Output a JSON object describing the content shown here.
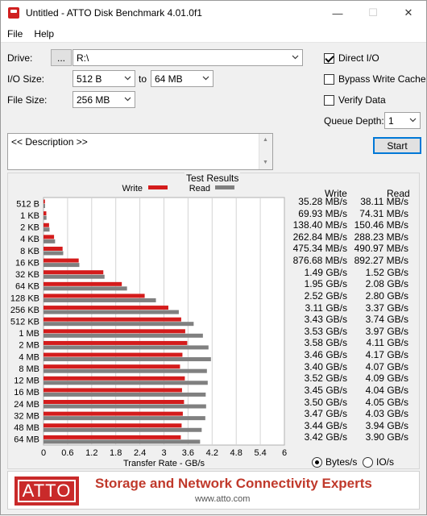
{
  "window": {
    "title": "Untitled - ATTO Disk Benchmark 4.01.0f1",
    "minimize_glyph": "—",
    "maximize_glyph": "☐",
    "close_glyph": "✕"
  },
  "menu": [
    "File",
    "Help"
  ],
  "controls": {
    "drive_label": "Drive:",
    "browse_label": "...",
    "drive_value": "R:\\",
    "io_size_label": "I/O Size:",
    "io_from": "512 B",
    "io_to_label": "to",
    "io_to": "64 MB",
    "file_size_label": "File Size:",
    "file_size": "256 MB",
    "direct_io_label": "Direct I/O",
    "direct_io_checked": true,
    "bypass_label": "Bypass Write Cache",
    "bypass_checked": false,
    "verify_label": "Verify Data",
    "verify_checked": false,
    "queue_depth_label": "Queue Depth:",
    "queue_depth": "1",
    "start_label": "Start"
  },
  "description": "<< Description >>",
  "results": {
    "title": "Test Results",
    "legend_write": "Write",
    "legend_read": "Read",
    "col_write": "Write",
    "col_read": "Read",
    "write_display": [
      "35.28 MB/s",
      "69.93 MB/s",
      "138.40 MB/s",
      "262.84 MB/s",
      "475.34 MB/s",
      "876.68 MB/s",
      "1.49 GB/s",
      "1.95 GB/s",
      "2.52 GB/s",
      "3.11 GB/s",
      "3.43 GB/s",
      "3.53 GB/s",
      "3.58 GB/s",
      "3.46 GB/s",
      "3.40 GB/s",
      "3.52 GB/s",
      "3.45 GB/s",
      "3.50 GB/s",
      "3.47 GB/s",
      "3.44 GB/s",
      "3.42 GB/s"
    ],
    "read_display": [
      "38.11 MB/s",
      "74.31 MB/s",
      "150.46 MB/s",
      "288.23 MB/s",
      "490.97 MB/s",
      "892.27 MB/s",
      "1.52 GB/s",
      "2.08 GB/s",
      "2.80 GB/s",
      "3.37 GB/s",
      "3.74 GB/s",
      "3.97 GB/s",
      "4.11 GB/s",
      "4.17 GB/s",
      "4.07 GB/s",
      "4.09 GB/s",
      "4.04 GB/s",
      "4.05 GB/s",
      "4.03 GB/s",
      "3.94 GB/s",
      "3.90 GB/s"
    ],
    "units_bytes_label": "Bytes/s",
    "units_io_label": "IO/s",
    "units_selected": "bytes"
  },
  "chart_data": {
    "type": "bar",
    "orientation": "horizontal",
    "categories": [
      "512 B",
      "1 KB",
      "2 KB",
      "4 KB",
      "8 KB",
      "16 KB",
      "32 KB",
      "64 KB",
      "128 KB",
      "256 KB",
      "512 KB",
      "1 MB",
      "2 MB",
      "4 MB",
      "8 MB",
      "12 MB",
      "16 MB",
      "24 MB",
      "32 MB",
      "48 MB",
      "64 MB"
    ],
    "series": [
      {
        "name": "Write",
        "color": "#d41c1c",
        "values": [
          0.03528,
          0.06993,
          0.1384,
          0.26284,
          0.47534,
          0.87668,
          1.49,
          1.95,
          2.52,
          3.11,
          3.43,
          3.53,
          3.58,
          3.46,
          3.4,
          3.52,
          3.45,
          3.5,
          3.47,
          3.44,
          3.42
        ]
      },
      {
        "name": "Read",
        "color": "#808080",
        "values": [
          0.03811,
          0.07431,
          0.15046,
          0.28823,
          0.49097,
          0.89227,
          1.52,
          2.08,
          2.8,
          3.37,
          3.74,
          3.97,
          4.11,
          4.17,
          4.07,
          4.09,
          4.04,
          4.05,
          4.03,
          3.94,
          3.9
        ]
      }
    ],
    "xlabel": "Transfer Rate - GB/s",
    "xlim": [
      0,
      6
    ],
    "xticks": [
      "0",
      "0.6",
      "1.2",
      "1.8",
      "2.4",
      "3",
      "3.6",
      "4.2",
      "4.8",
      "5.4",
      "6"
    ],
    "grid": true,
    "legend_position": "top"
  },
  "banner": {
    "logo_text": "ATTO",
    "tagline": "Storage and Network Connectivity Experts",
    "url": "www.atto.com"
  }
}
